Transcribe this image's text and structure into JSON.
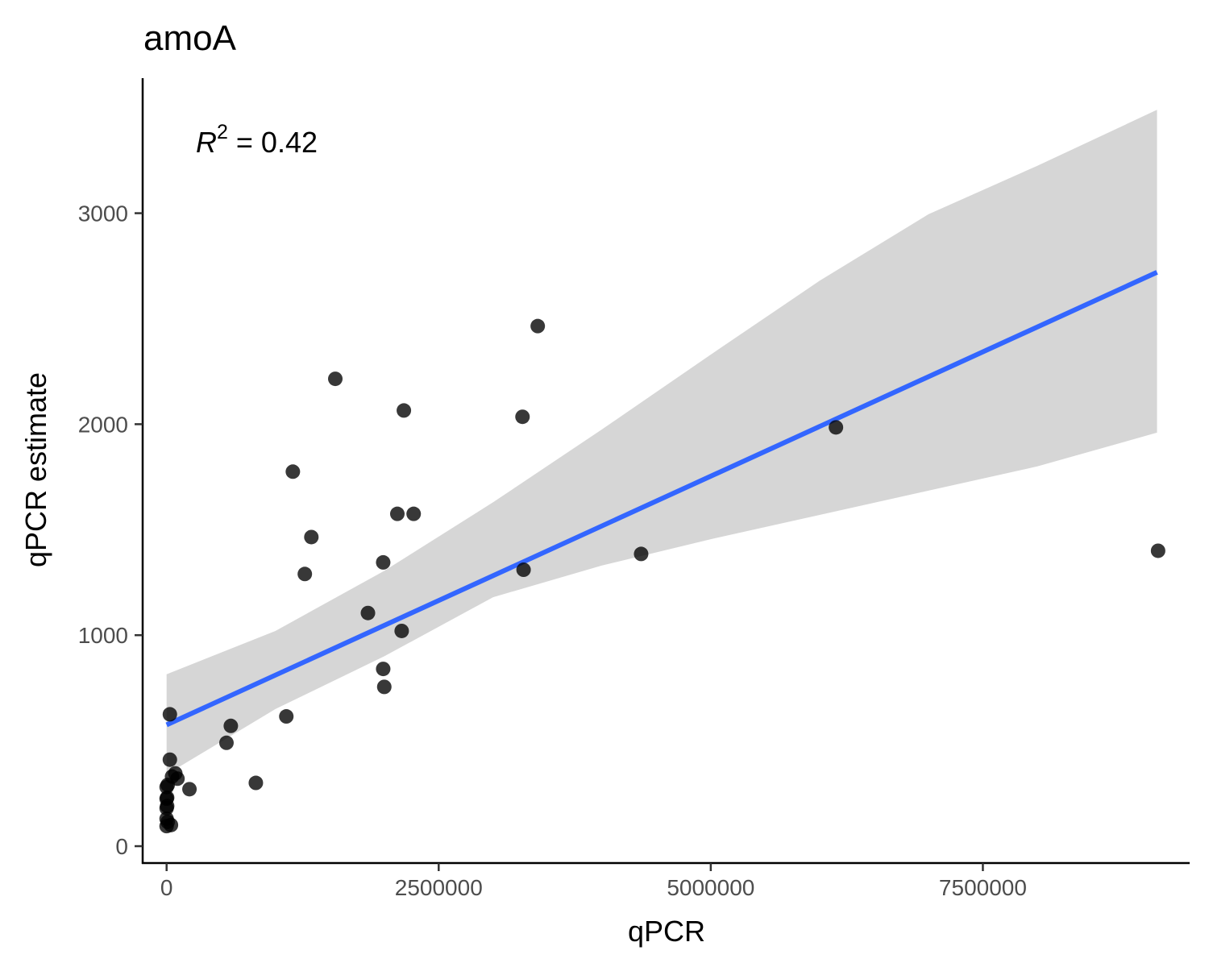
{
  "chart_data": {
    "type": "scatter",
    "title": "amoA",
    "xlabel": "qPCR",
    "ylabel": "qPCR estimate",
    "xlim": [
      -220000,
      9400000
    ],
    "ylim": [
      -80,
      3640
    ],
    "x_ticks": [
      0,
      2500000,
      5000000,
      7500000
    ],
    "x_tick_labels": [
      "0",
      "2500000",
      "5000000",
      "7500000"
    ],
    "y_ticks": [
      0,
      1000,
      2000,
      3000
    ],
    "y_tick_labels": [
      "0",
      "1000",
      "2000",
      "3000"
    ],
    "grid": false,
    "annotation": {
      "base": "R",
      "superscript": "2",
      "rest": " = 0.42"
    },
    "colors": {
      "points": "#000000",
      "fit_line": "#3366ff",
      "confidence_band": "#d6d6d6"
    },
    "fit": {
      "x": [
        0,
        9100000
      ],
      "y": [
        575,
        2720
      ],
      "ci_x": [
        0,
        1000000,
        2000000,
        3000000,
        4000000,
        5000000,
        6000000,
        7000000,
        8000000,
        9100000
      ],
      "ci_lower": [
        340,
        650,
        900,
        1180,
        1330,
        1455,
        1570,
        1685,
        1800,
        1960
      ],
      "ci_upper": [
        815,
        1020,
        1305,
        1630,
        1975,
        2330,
        2680,
        2995,
        3225,
        3490
      ]
    },
    "points": [
      {
        "x": 3410000,
        "y": 2465
      },
      {
        "x": 1550000,
        "y": 2215
      },
      {
        "x": 2180000,
        "y": 2065
      },
      {
        "x": 3270000,
        "y": 2035
      },
      {
        "x": 6150000,
        "y": 1985
      },
      {
        "x": 1160000,
        "y": 1775
      },
      {
        "x": 2120000,
        "y": 1575
      },
      {
        "x": 2270000,
        "y": 1575
      },
      {
        "x": 1330000,
        "y": 1465
      },
      {
        "x": 9110000,
        "y": 1400
      },
      {
        "x": 4360000,
        "y": 1385
      },
      {
        "x": 1990000,
        "y": 1345
      },
      {
        "x": 3280000,
        "y": 1310
      },
      {
        "x": 1270000,
        "y": 1290
      },
      {
        "x": 1850000,
        "y": 1105
      },
      {
        "x": 2160000,
        "y": 1020
      },
      {
        "x": 1990000,
        "y": 840
      },
      {
        "x": 2000000,
        "y": 755
      },
      {
        "x": 30000,
        "y": 625
      },
      {
        "x": 1100000,
        "y": 615
      },
      {
        "x": 590000,
        "y": 570
      },
      {
        "x": 550000,
        "y": 490
      },
      {
        "x": 30000,
        "y": 410
      },
      {
        "x": 80000,
        "y": 345
      },
      {
        "x": 50000,
        "y": 330
      },
      {
        "x": 100000,
        "y": 320
      },
      {
        "x": 820000,
        "y": 300
      },
      {
        "x": 10000,
        "y": 290
      },
      {
        "x": 210000,
        "y": 270
      },
      {
        "x": 0,
        "y": 280
      },
      {
        "x": 5000,
        "y": 230
      },
      {
        "x": 0,
        "y": 225
      },
      {
        "x": 5000,
        "y": 190
      },
      {
        "x": 0,
        "y": 180
      },
      {
        "x": 0,
        "y": 130
      },
      {
        "x": 10000,
        "y": 115
      },
      {
        "x": 40000,
        "y": 100
      },
      {
        "x": 0,
        "y": 95
      }
    ]
  }
}
